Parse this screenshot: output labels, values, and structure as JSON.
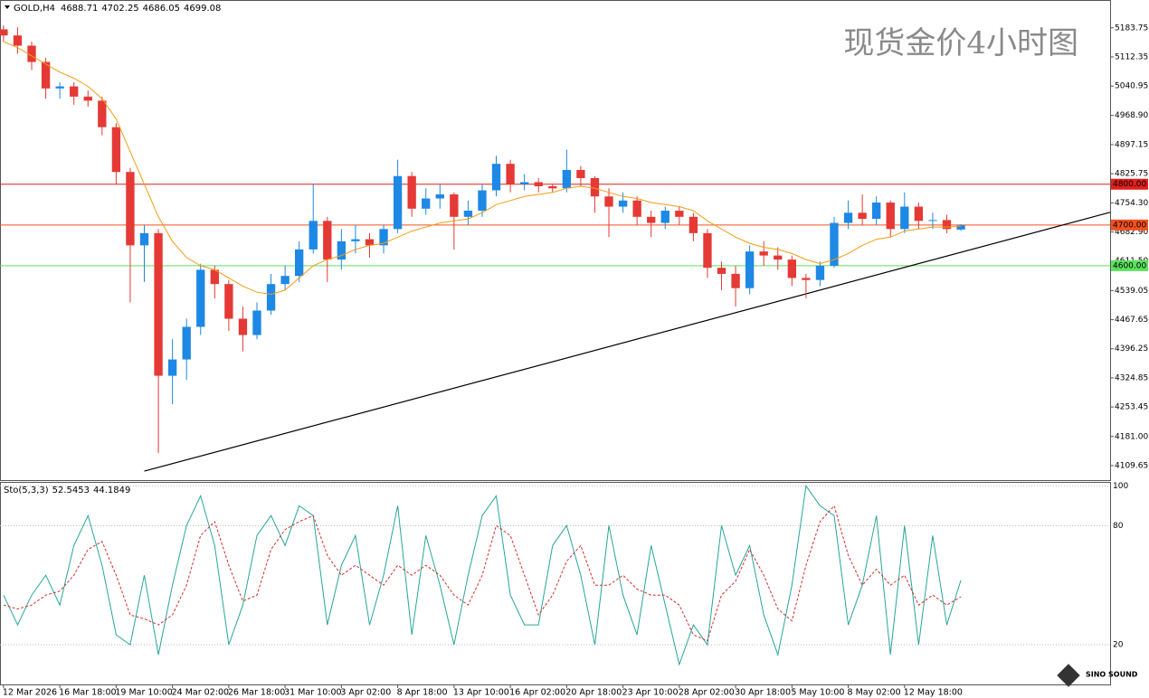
{
  "chart_data": {
    "type": "candlestick",
    "symbol": "GOLD,H4",
    "title": "现货金价4小时图",
    "logo": "SINO SOUND",
    "up_color": "#1e88e5",
    "down_color": "#e53935",
    "xlim": [
      -0.25,
      78.6
    ],
    "xticks": [
      {
        "value": 0,
        "label": "12 Mar 2026"
      },
      {
        "value": 4,
        "label": "16 Mar 18:00"
      },
      {
        "value": 8,
        "label": "19 Mar 10:00"
      },
      {
        "value": 12,
        "label": "24 Mar 02:00"
      },
      {
        "value": 16,
        "label": "26 Mar 18:00"
      },
      {
        "value": 20,
        "label": "31 Mar 10:00"
      },
      {
        "value": 24,
        "label": "3 Apr 02:00"
      },
      {
        "value": 28,
        "label": "8 Apr 18:00"
      },
      {
        "value": 32,
        "label": "13 Apr 10:00"
      },
      {
        "value": 36,
        "label": "16 Apr 02:00"
      },
      {
        "value": 40,
        "label": "20 Apr 18:00"
      },
      {
        "value": 44,
        "label": "23 Apr 10:00"
      },
      {
        "value": 48,
        "label": "28 Apr 02:00"
      },
      {
        "value": 52,
        "label": "30 Apr 18:00"
      },
      {
        "value": 56,
        "label": "5 May 10:00"
      },
      {
        "value": 60,
        "label": "8 May 02:00"
      },
      {
        "value": 64,
        "label": "12 May 18:00"
      }
    ],
    "ylim": [
      4074,
      5252
    ],
    "yticks": [
      5183.75,
      5112.35,
      5040.95,
      {
        "value": 4968.9,
        "label": "4968.90"
      },
      4897.15,
      4825.75,
      {
        "value": 4754.3,
        "label": "4754.30"
      },
      {
        "value": 4682.9,
        "label": "4682.90"
      },
      {
        "value": 4611.5,
        "label": "4611.50"
      },
      4539.05,
      4467.65,
      4396.25,
      4324.85,
      4253.45,
      {
        "value": 4181,
        "label": "4181.00"
      },
      4109.65
    ],
    "open": [
      5180,
      5165,
      5140,
      5100,
      5035,
      5040,
      5015,
      5005,
      4940,
      4830,
      4650,
      4680,
      4330,
      4370,
      4450,
      4590,
      4555,
      4470,
      4430,
      4490,
      4555,
      4575,
      4640,
      4710,
      4615,
      4660,
      4665,
      4650,
      4690,
      4820,
      4740,
      4765,
      4775,
      4720,
      4735,
      4785,
      4850,
      4800,
      4805,
      4795,
      4790,
      4835,
      4815,
      4770,
      4745,
      4760,
      4720,
      4705,
      4735,
      4720,
      4680,
      4595,
      4580,
      4545,
      4635,
      4625,
      4615,
      4570,
      4565,
      4600,
      4705,
      4730,
      4715,
      4755,
      4690,
      4745,
      4710,
      4712,
      4688.71
    ],
    "high": [
      5190,
      5185,
      5150,
      5110,
      5050,
      5050,
      5030,
      5015,
      4950,
      4840,
      4700,
      4690,
      4420,
      4470,
      4605,
      4600,
      4565,
      4500,
      4510,
      4580,
      4600,
      4660,
      4800,
      4720,
      4690,
      4700,
      4680,
      4700,
      4860,
      4830,
      4790,
      4800,
      4780,
      4760,
      4800,
      4870,
      4860,
      4825,
      4815,
      4800,
      4885,
      4845,
      4820,
      4790,
      4780,
      4770,
      4735,
      4745,
      4745,
      4730,
      4690,
      4610,
      4600,
      4650,
      4660,
      4645,
      4625,
      4580,
      4610,
      4720,
      4760,
      4775,
      4770,
      4760,
      4780,
      4755,
      4730,
      4725,
      4702.25
    ],
    "low": [
      5150,
      5120,
      5080,
      5010,
      5010,
      4995,
      4990,
      4920,
      4800,
      4510,
      4560,
      4140,
      4260,
      4320,
      4430,
      4520,
      4440,
      4390,
      4420,
      4480,
      4540,
      4560,
      4630,
      4560,
      4590,
      4630,
      4620,
      4630,
      4680,
      4720,
      4725,
      4740,
      4640,
      4700,
      4720,
      4770,
      4780,
      4785,
      4780,
      4780,
      4780,
      4795,
      4730,
      4670,
      4730,
      4700,
      4670,
      4690,
      4700,
      4660,
      4570,
      4540,
      4500,
      4530,
      4600,
      4590,
      4550,
      4520,
      4550,
      4595,
      4690,
      4700,
      4700,
      4670,
      4680,
      4690,
      4690,
      4680,
      4686.05
    ],
    "close": [
      5165,
      5140,
      5100,
      5035,
      5040,
      5015,
      5005,
      4940,
      4830,
      4650,
      4680,
      4330,
      4370,
      4450,
      4590,
      4555,
      4470,
      4430,
      4490,
      4555,
      4575,
      4640,
      4710,
      4615,
      4660,
      4665,
      4650,
      4690,
      4820,
      4740,
      4765,
      4775,
      4720,
      4735,
      4785,
      4850,
      4800,
      4805,
      4795,
      4790,
      4835,
      4815,
      4770,
      4745,
      4760,
      4720,
      4705,
      4735,
      4720,
      4680,
      4595,
      4580,
      4545,
      4635,
      4625,
      4615,
      4570,
      4565,
      4600,
      4705,
      4730,
      4715,
      4755,
      4690,
      4745,
      4710,
      4712,
      4690,
      4699.08
    ],
    "ma": {
      "color": "#f39c12",
      "values": [
        5150,
        5135,
        5115,
        5095,
        5075,
        5060,
        5040,
        5010,
        4960,
        4880,
        4800,
        4720,
        4660,
        4620,
        4600,
        4590,
        4570,
        4550,
        4535,
        4530,
        4540,
        4570,
        4600,
        4615,
        4625,
        4640,
        4650,
        4655,
        4670,
        4685,
        4695,
        4705,
        4710,
        4715,
        4730,
        4750,
        4760,
        4770,
        4775,
        4780,
        4790,
        4795,
        4790,
        4780,
        4770,
        4765,
        4755,
        4750,
        4745,
        4735,
        4710,
        4690,
        4670,
        4655,
        4645,
        4640,
        4630,
        4615,
        4605,
        4615,
        4630,
        4650,
        4665,
        4670,
        4685,
        4690,
        4695,
        4695,
        4697
      ]
    },
    "levels": [
      {
        "value": 4800,
        "label": "4800.00",
        "color": "#e0201b"
      },
      {
        "value": 4700,
        "label": "4700.00",
        "color": "#f4511e"
      },
      {
        "value": 4600,
        "label": "4600.00",
        "color": "#5be35b"
      }
    ],
    "trendline": {
      "x": [
        10,
        78.6
      ],
      "y": [
        4096,
        4731
      ],
      "color": "#000000"
    },
    "indicator": {
      "name": "Sto(5,3,3)",
      "ylim": [
        0,
        102
      ],
      "yticks": [
        100,
        80,
        20
      ],
      "k": {
        "color": "#26a69a",
        "values": [
          45,
          30,
          45,
          55,
          40,
          70,
          85,
          60,
          25,
          20,
          55,
          15,
          50,
          80,
          95,
          70,
          20,
          40,
          75,
          85,
          70,
          90,
          85,
          30,
          60,
          75,
          30,
          55,
          90,
          25,
          75,
          50,
          20,
          55,
          85,
          95,
          45,
          30,
          30,
          70,
          80,
          55,
          20,
          80,
          45,
          25,
          70,
          40,
          10,
          30,
          20,
          80,
          55,
          70,
          35,
          15,
          50,
          100,
          90,
          85,
          30,
          50,
          85,
          15,
          80,
          20,
          75,
          30,
          52.5453
        ]
      },
      "d": {
        "color": "#d32f2f",
        "values": [
          40,
          38,
          40,
          45,
          47,
          55,
          68,
          72,
          55,
          35,
          33,
          30,
          35,
          50,
          75,
          82,
          60,
          42,
          45,
          68,
          78,
          82,
          85,
          65,
          55,
          60,
          55,
          50,
          60,
          55,
          60,
          55,
          45,
          40,
          55,
          80,
          75,
          55,
          35,
          45,
          62,
          70,
          50,
          50,
          55,
          48,
          45,
          45,
          40,
          25,
          22,
          45,
          52,
          68,
          55,
          38,
          32,
          60,
          82,
          90,
          65,
          50,
          58,
          50,
          55,
          40,
          45,
          40,
          44.1849
        ]
      }
    }
  }
}
